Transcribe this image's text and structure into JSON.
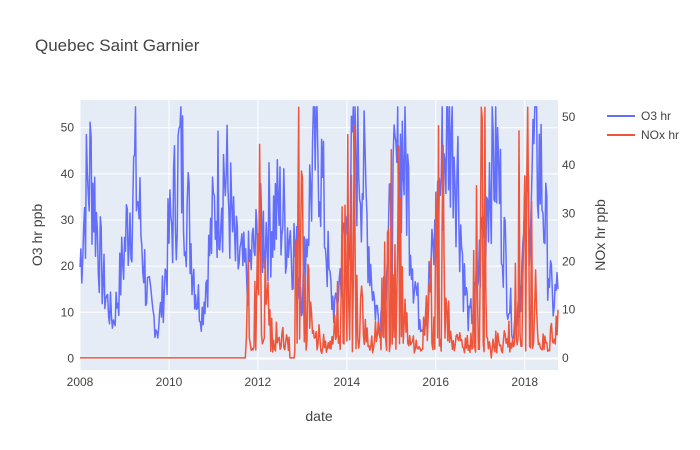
{
  "chart_data": {
    "type": "line",
    "title": "Quebec Saint Garnier",
    "xlabel": "date",
    "ylabel": "O3 hr ppb",
    "y2label": "NOx hr ppb",
    "xlim": [
      "2008-01-01",
      "2018-10-01"
    ],
    "ylim": [
      -2.5,
      56
    ],
    "y2lim": [
      -2.5,
      53.5
    ],
    "x_ticks": [
      "2008",
      "2010",
      "2012",
      "2014",
      "2016",
      "2018"
    ],
    "y_ticks": [
      0,
      10,
      20,
      30,
      40,
      50
    ],
    "y2_ticks": [
      0,
      10,
      20,
      30,
      40,
      50
    ],
    "grid": true,
    "legend_position": "top-right",
    "series": [
      {
        "name": "O3 hr",
        "axis": "left",
        "color": "#636efa",
        "x": [
          "2008-01-01",
          "2008-02-15",
          "2008-04-01",
          "2008-05-15",
          "2008-07-01",
          "2008-08-15",
          "2008-10-01",
          "2008-11-15",
          "2009-01-01",
          "2009-02-15",
          "2009-04-01",
          "2009-05-15",
          "2009-07-01",
          "2009-08-15",
          "2009-10-01",
          "2009-11-15",
          "2010-01-01",
          "2010-02-15",
          "2010-04-01",
          "2010-05-15",
          "2010-07-01",
          "2010-08-15",
          "2010-10-01",
          "2010-11-15",
          "2011-01-01",
          "2011-02-15",
          "2011-04-01",
          "2011-05-15",
          "2011-07-01",
          "2011-08-15",
          "2011-10-01",
          "2011-11-15",
          "2012-01-01",
          "2012-04-01",
          "2012-07-01",
          "2012-10-01",
          "2013-01-01",
          "2013-02-15",
          "2013-04-01",
          "2013-05-15",
          "2013-07-01",
          "2013-08-15",
          "2013-10-01",
          "2013-11-15",
          "2014-01-01",
          "2014-02-15",
          "2014-04-01",
          "2014-05-15",
          "2014-07-01",
          "2014-08-15",
          "2014-10-01",
          "2014-11-15",
          "2015-01-01",
          "2015-02-15",
          "2015-04-01",
          "2015-05-15",
          "2015-07-01",
          "2015-08-15",
          "2015-10-01",
          "2015-11-15",
          "2016-01-01",
          "2016-02-15",
          "2016-04-01",
          "2016-05-15",
          "2016-07-01",
          "2016-08-15",
          "2016-10-01",
          "2016-11-15",
          "2017-01-01",
          "2017-02-15",
          "2017-04-01",
          "2017-05-15",
          "2017-07-01",
          "2017-08-15",
          "2017-10-01",
          "2017-11-15",
          "2018-01-01",
          "2018-02-15",
          "2018-04-01",
          "2018-05-15",
          "2018-07-01",
          "2018-08-15",
          "2018-10-01"
        ],
        "y": [
          20,
          35,
          42,
          30,
          18,
          12,
          8,
          15,
          24,
          33,
          40,
          28,
          15,
          10,
          6,
          14,
          26,
          34,
          44,
          37,
          25,
          14,
          10,
          20,
          30,
          38,
          41,
          33,
          22,
          20,
          18,
          22,
          25,
          30,
          32,
          27,
          15,
          30,
          44,
          49,
          30,
          15,
          10,
          20,
          28,
          40,
          47,
          40,
          25,
          12,
          8,
          20,
          30,
          40,
          46,
          38,
          20,
          10,
          8,
          18,
          26,
          40,
          49,
          52,
          40,
          18,
          8,
          12,
          22,
          35,
          45,
          44,
          30,
          15,
          6,
          14,
          25,
          38,
          46,
          40,
          25,
          12,
          15
        ]
      },
      {
        "name": "NOx hr",
        "axis": "right",
        "color": "#ef553b",
        "x": [
          "2008-01-01",
          "2011-09-20",
          "2011-10-15",
          "2011-11-15",
          "2011-12-15",
          "2012-01-15",
          "2012-02-15",
          "2012-04-01",
          "2012-06-01",
          "2012-08-01",
          "2012-09-01",
          "2012-09-20",
          "2012-10-25",
          "2012-11-05",
          "2012-12-01",
          "2013-01-01",
          "2013-02-15",
          "2013-04-01",
          "2013-06-01",
          "2013-08-01",
          "2013-10-01",
          "2013-11-15",
          "2014-01-01",
          "2014-02-15",
          "2014-04-01",
          "2014-06-01",
          "2014-08-01",
          "2014-10-01",
          "2014-11-15",
          "2015-01-01",
          "2015-02-15",
          "2015-04-01",
          "2015-06-01",
          "2015-08-01",
          "2015-10-01",
          "2015-11-15",
          "2016-01-01",
          "2016-02-15",
          "2016-04-01",
          "2016-06-01",
          "2016-08-01",
          "2016-10-01",
          "2016-11-15",
          "2017-01-01",
          "2017-02-01",
          "2017-03-01",
          "2017-04-01",
          "2017-04-15",
          "2017-06-01",
          "2017-08-01",
          "2017-10-01",
          "2017-11-15",
          "2018-01-01",
          "2018-02-10",
          "2018-03-15",
          "2018-05-01",
          "2018-07-01",
          "2018-09-01",
          "2018-10-01"
        ],
        "y": [
          0,
          0,
          15,
          28,
          38,
          30,
          20,
          8,
          5,
          6,
          12,
          0,
          0,
          22,
          40,
          30,
          15,
          8,
          3,
          3,
          10,
          18,
          30,
          40,
          15,
          5,
          3,
          8,
          20,
          30,
          40,
          12,
          5,
          3,
          6,
          18,
          25,
          35,
          10,
          4,
          3,
          12,
          20,
          30,
          44,
          20,
          0,
          6,
          3,
          4,
          10,
          28,
          35,
          48,
          15,
          4,
          3,
          5,
          10
        ]
      }
    ]
  }
}
